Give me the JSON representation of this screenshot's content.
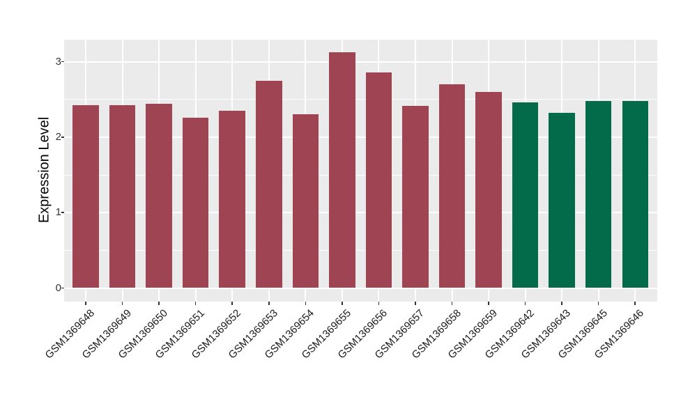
{
  "figure": {
    "background": "#FFFFFF",
    "panel_background": "#EBEBEB",
    "grid_color": "#FFFFFF",
    "tick_color": "#333333",
    "axis_text_color": "#1A1A1A"
  },
  "chart_data": {
    "type": "bar",
    "title": "",
    "xlabel": "",
    "ylabel": "Expression Level",
    "ylim": [
      0,
      3.29
    ],
    "yticks": [
      0,
      1,
      2,
      3
    ],
    "ytick_labels": [
      "0",
      "1",
      "2",
      "3"
    ],
    "yticks_minor": [
      0.5,
      1.5,
      2.5
    ],
    "grid": "white major and minor gridlines on gray panel",
    "legend_position": "none",
    "categories": [
      "GSM1369648",
      "GSM1369649",
      "GSM1369650",
      "GSM1369651",
      "GSM1369652",
      "GSM1369653",
      "GSM1369654",
      "GSM1369655",
      "GSM1369656",
      "GSM1369657",
      "GSM1369658",
      "GSM1369659",
      "GSM1369642",
      "GSM1369643",
      "GSM1369645",
      "GSM1369646"
    ],
    "values": [
      2.42,
      2.42,
      2.44,
      2.26,
      2.35,
      2.75,
      2.3,
      3.13,
      2.86,
      2.41,
      2.7,
      2.6,
      2.46,
      2.32,
      2.48,
      2.48
    ],
    "bar_groups": [
      "red",
      "red",
      "red",
      "red",
      "red",
      "red",
      "red",
      "red",
      "red",
      "red",
      "red",
      "red",
      "green",
      "green",
      "green",
      "green"
    ],
    "group_colors": {
      "red": "#9E4452",
      "green": "#046B4A"
    }
  }
}
